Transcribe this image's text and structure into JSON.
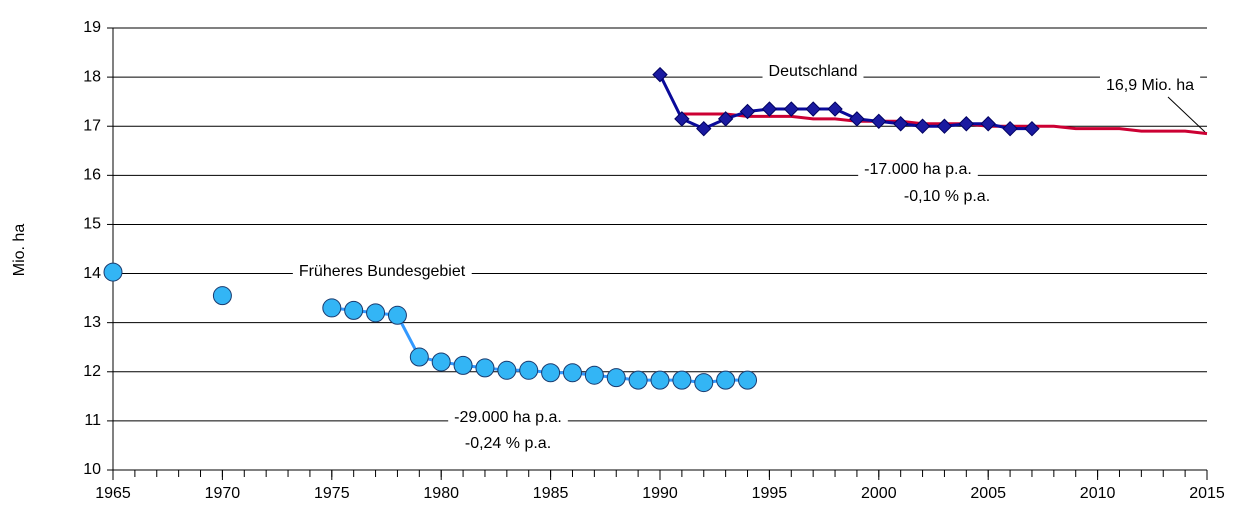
{
  "chart_data": {
    "type": "line",
    "y_label": "Mio. ha",
    "xlim": [
      1965,
      2015
    ],
    "xticks": [
      1965,
      1970,
      1975,
      1980,
      1985,
      1990,
      1995,
      2000,
      2005,
      2010,
      2015
    ],
    "ylim": [
      10,
      19
    ],
    "yticks": [
      10,
      11,
      12,
      13,
      14,
      15,
      16,
      17,
      18,
      19
    ],
    "grid": true,
    "series": [
      {
        "color": "#cc0033",
        "marker": "none",
        "x": [
          1991,
          1992,
          1993,
          1994,
          1995,
          1996,
          1997,
          1998,
          1999,
          2000,
          2001,
          2002,
          2003,
          2004,
          2005,
          2006,
          2007,
          2008,
          2009,
          2010,
          2011,
          2012,
          2013,
          2014,
          2015
        ],
        "values": [
          17.25,
          17.25,
          17.25,
          17.2,
          17.2,
          17.2,
          17.15,
          17.15,
          17.1,
          17.1,
          17.1,
          17.05,
          17.05,
          17.05,
          17.0,
          17.0,
          17.0,
          17.0,
          16.95,
          16.95,
          16.95,
          16.9,
          16.9,
          16.9,
          16.85
        ]
      },
      {
        "color": "#3399ff",
        "marker": "circle",
        "marker_color": "#33b5f5",
        "x": [
          1965,
          1966,
          1967,
          1968,
          1969,
          1970,
          1971,
          1972,
          1973,
          1974,
          1975,
          1976,
          1977,
          1978,
          1979,
          1980,
          1981,
          1982,
          1983,
          1984,
          1985,
          1986,
          1987,
          1988,
          1989,
          1990,
          1991,
          1992,
          1993,
          1994
        ],
        "values": [
          14.03,
          null,
          null,
          null,
          null,
          13.55,
          null,
          null,
          null,
          null,
          13.3,
          13.25,
          13.2,
          13.15,
          12.3,
          12.2,
          12.13,
          12.08,
          12.03,
          12.03,
          11.98,
          11.98,
          11.93,
          11.88,
          11.83,
          11.83,
          11.83,
          11.78,
          11.83,
          11.83
        ]
      },
      {
        "color": "#0a0a9a",
        "marker": "diamond",
        "marker_color": "#1a1aa0",
        "x": [
          1990,
          1991,
          1992,
          1993,
          1994,
          1995,
          1996,
          1997,
          1998,
          1999,
          2000,
          2001,
          2002,
          2003,
          2004,
          2005,
          2006,
          2007
        ],
        "values": [
          18.05,
          17.15,
          16.95,
          17.15,
          17.3,
          17.35,
          17.35,
          17.35,
          17.35,
          17.15,
          17.1,
          17.05,
          17.0,
          17.0,
          17.05,
          17.05,
          16.95,
          16.95
        ]
      }
    ],
    "annotations": [
      "Deutschland",
      "16,9 Mio. ha",
      "-17.000 ha p.a.",
      "-0,10 % p.a.",
      "Früheres Bundesgebiet",
      "-29.000 ha p.a.",
      "-0,24 % p.a."
    ]
  }
}
